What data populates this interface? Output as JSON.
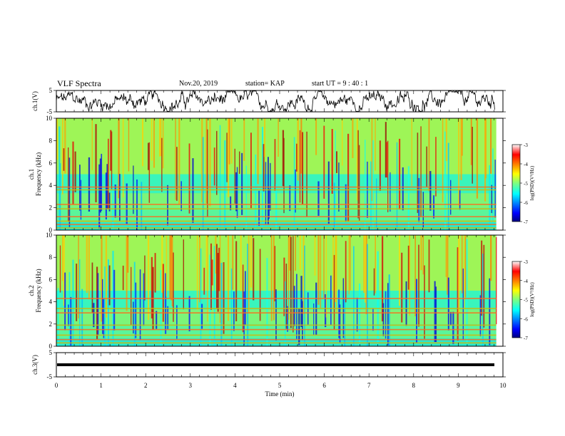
{
  "header": {
    "title": "VLF Spectra",
    "date": "Nov.20, 2019",
    "station": "station= KAP",
    "start": "start  UT  =   9  : 40 : 1"
  },
  "chart_data": [
    {
      "type": "line",
      "id": "ch1-waveform",
      "ylabel": "ch.1(V)",
      "ylim": [
        -5,
        5
      ],
      "yticks": [
        "5",
        "-5"
      ],
      "xlim": [
        0,
        10
      ],
      "color": "#000000"
    },
    {
      "type": "heatmap",
      "id": "ch1-spectrogram",
      "ylabel": "ch.1\nFrequency (kHz)",
      "ylim": [
        0,
        10
      ],
      "yticks": [
        "0",
        "2",
        "4",
        "6",
        "8",
        "10"
      ],
      "xlim": [
        0,
        10
      ],
      "xdata_max": 9.85,
      "colorbar": {
        "label": "log(PSD)(V²/Hz)",
        "range": [
          -7,
          -3
        ],
        "ticks": [
          "-3",
          "-4",
          "-5",
          "-6",
          "-7"
        ]
      }
    },
    {
      "type": "heatmap",
      "id": "ch2-spectrogram",
      "ylabel": "ch.2\nFrequency (kHz)",
      "ylim": [
        0,
        10
      ],
      "yticks": [
        "0",
        "2",
        "4",
        "6",
        "8",
        "10"
      ],
      "xlim": [
        0,
        10
      ],
      "xdata_max": 9.85,
      "colorbar": {
        "label": "log(PSD)(V²/Hz)",
        "range": [
          -7,
          -3
        ],
        "ticks": [
          "-3",
          "-4",
          "-5",
          "-6",
          "-7"
        ]
      }
    },
    {
      "type": "line",
      "id": "ch3-waveform",
      "ylabel": "ch.3(V)",
      "ylim": [
        -5,
        5
      ],
      "yticks": [
        "5",
        "-5"
      ],
      "xlim": [
        0,
        10
      ],
      "value": 0,
      "color": "#000000"
    }
  ],
  "x_axis": {
    "label": "Time (min)",
    "ticks": [
      "0",
      "1",
      "2",
      "3",
      "4",
      "5",
      "6",
      "7",
      "8",
      "9",
      "10"
    ]
  }
}
